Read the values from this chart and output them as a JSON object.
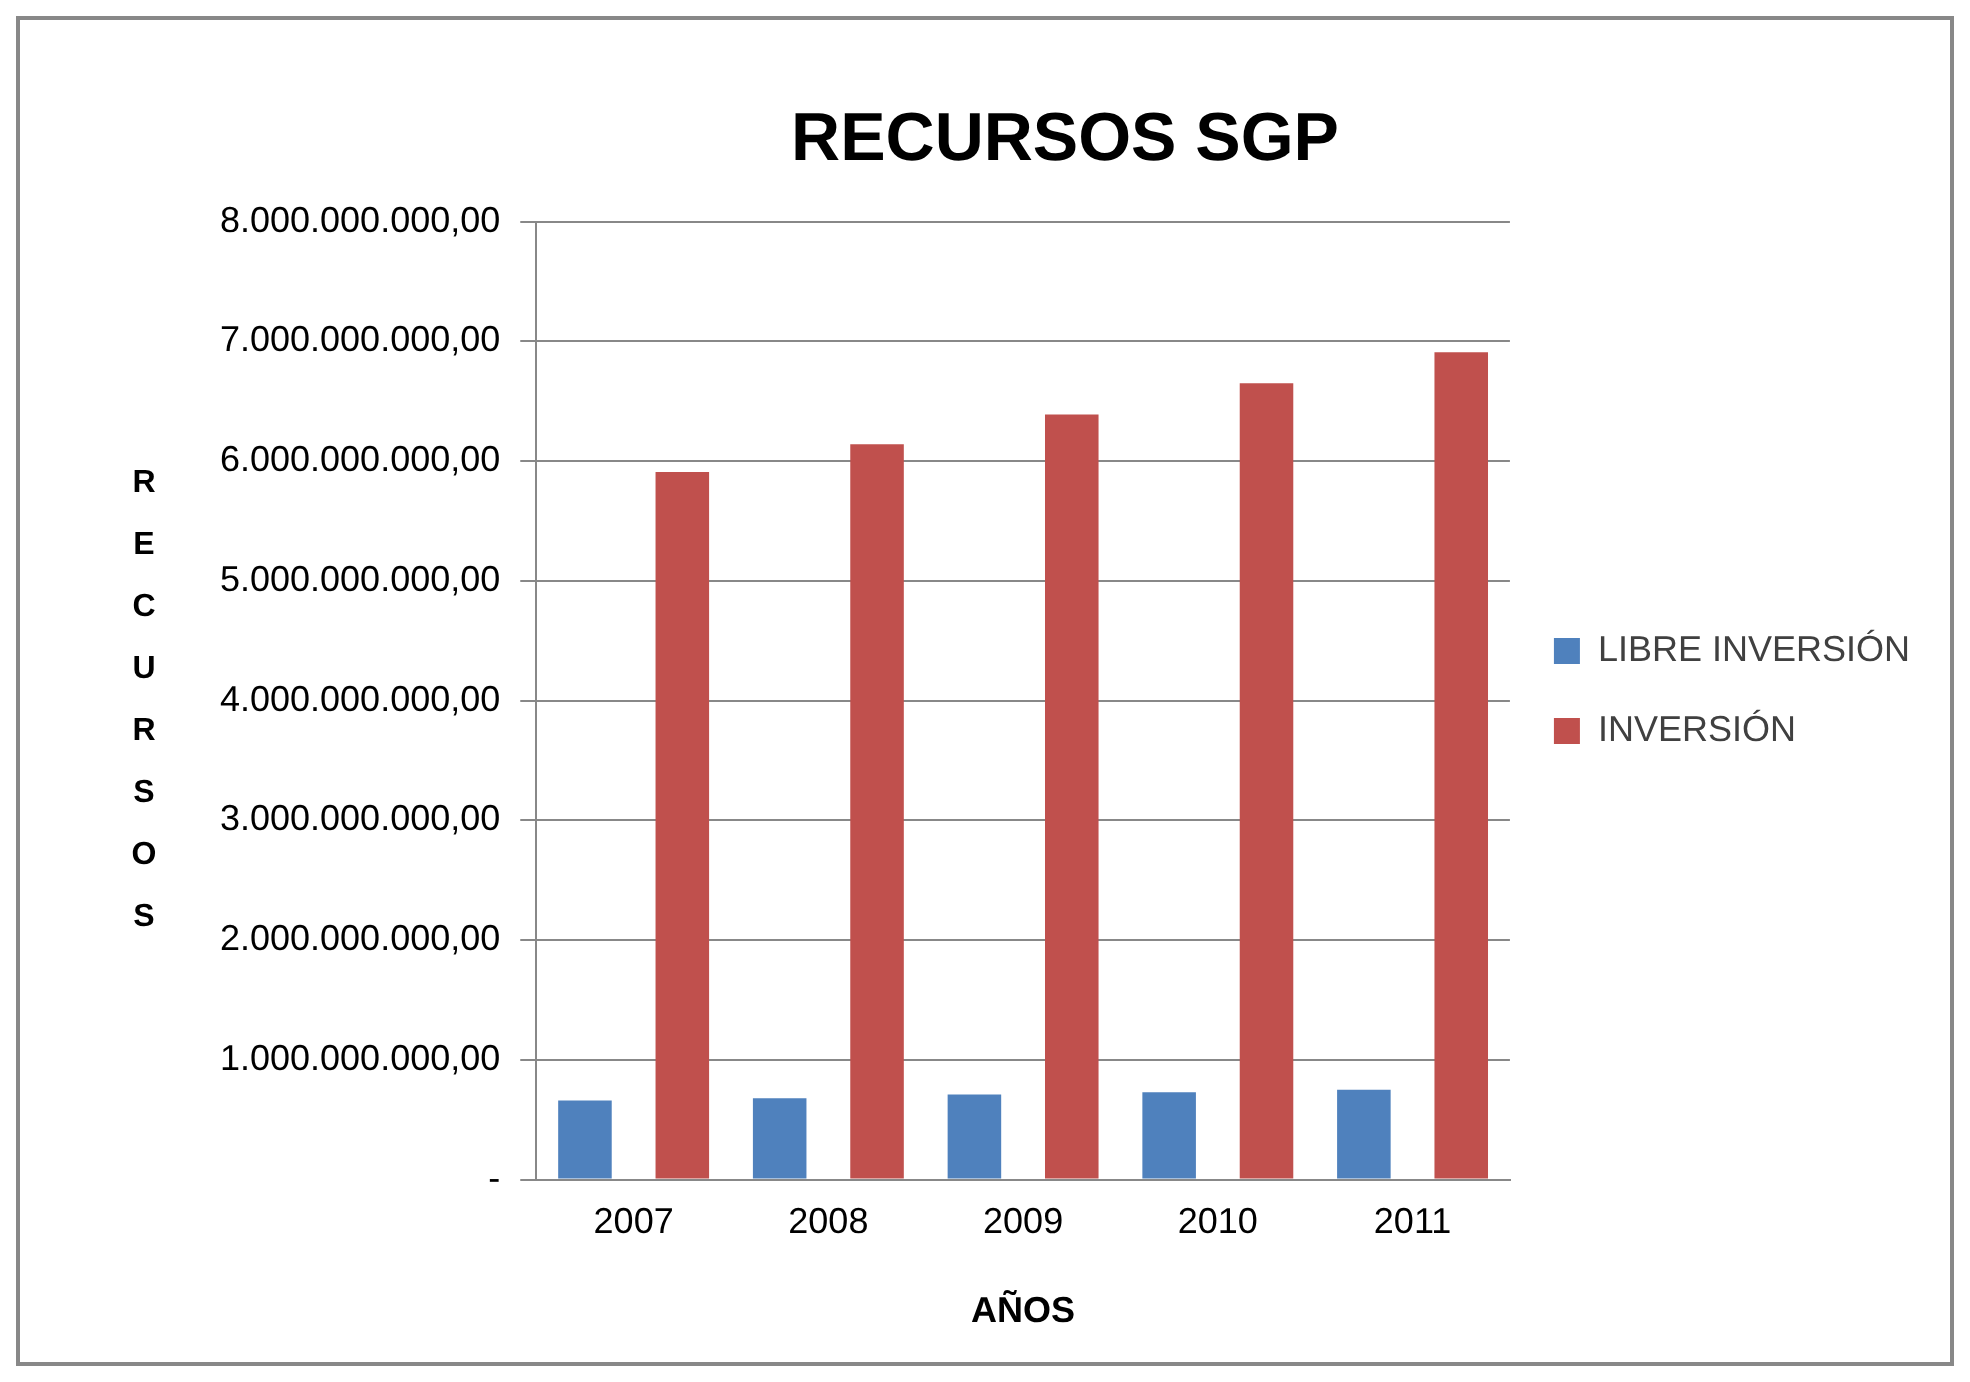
{
  "chart_data": {
    "type": "bar",
    "title": "RECURSOS SGP",
    "xlabel": "AÑOS",
    "ylabel": "RECURSOS",
    "categories": [
      "2007",
      "2008",
      "2009",
      "2010",
      "2011"
    ],
    "series": [
      {
        "name": "LIBRE INVERSIÓN",
        "color": "#4f81bd",
        "values": [
          660000000,
          680000000,
          710000000,
          730000000,
          750000000
        ]
      },
      {
        "name": "INVERSIÓN",
        "color": "#c0504d",
        "values": [
          5910000000,
          6140000000,
          6390000000,
          6650000000,
          6910000000
        ]
      }
    ],
    "ylim": [
      0,
      8000000000
    ],
    "yticks": [
      {
        "value": 0,
        "label": "-"
      },
      {
        "value": 1000000000,
        "label": "1.000.000.000,00"
      },
      {
        "value": 2000000000,
        "label": "2.000.000.000,00"
      },
      {
        "value": 3000000000,
        "label": "3.000.000.000,00"
      },
      {
        "value": 4000000000,
        "label": "4.000.000.000,00"
      },
      {
        "value": 5000000000,
        "label": "5.000.000.000,00"
      },
      {
        "value": 6000000000,
        "label": "6.000.000.000,00"
      },
      {
        "value": 7000000000,
        "label": "7.000.000.000,00"
      },
      {
        "value": 8000000000,
        "label": "8.000.000.000,00"
      }
    ],
    "grid": "y",
    "legend": "right"
  }
}
